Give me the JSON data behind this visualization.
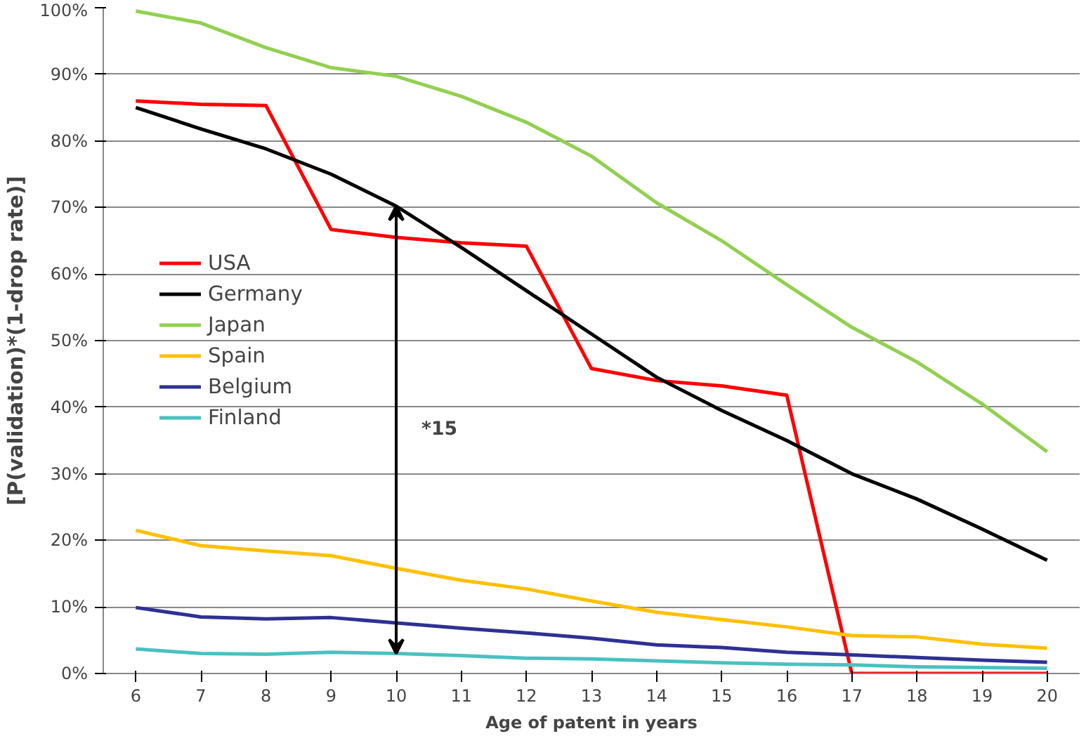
{
  "chart_data": {
    "type": "line",
    "xlabel": "Age of patent in years",
    "ylabel": "[P(validation)*(1-drop rate)]",
    "x": [
      6,
      7,
      8,
      9,
      10,
      11,
      12,
      13,
      14,
      15,
      16,
      17,
      18,
      19,
      20
    ],
    "series": [
      {
        "name": "USA",
        "color": "#ff0000",
        "values": [
          86,
          85.5,
          85.3,
          66.7,
          65.5,
          64.7,
          64.2,
          45.8,
          44,
          43.2,
          41.8,
          0,
          0,
          0,
          0
        ]
      },
      {
        "name": "Germany",
        "color": "#000000",
        "values": [
          85,
          81.8,
          78.8,
          75,
          70.2,
          64,
          57.5,
          51,
          44.5,
          39.5,
          35,
          30,
          26.2,
          21.7,
          17
        ]
      },
      {
        "name": "Japan",
        "color": "#92d050",
        "values": [
          99.5,
          97.7,
          94,
          91,
          89.7,
          86.7,
          82.8,
          77.7,
          70.7,
          65,
          58.4,
          52,
          46.8,
          40.5,
          33.3
        ]
      },
      {
        "name": "Spain",
        "color": "#ffc000",
        "values": [
          21.5,
          19.2,
          18.4,
          17.7,
          15.8,
          14,
          12.7,
          10.9,
          9.2,
          8.1,
          7,
          5.7,
          5.5,
          4.4,
          3.8
        ]
      },
      {
        "name": "Belgium",
        "color": "#2e3192",
        "values": [
          9.9,
          8.5,
          8.2,
          8.4,
          7.6,
          6.8,
          6.1,
          5.3,
          4.3,
          3.9,
          3.2,
          2.8,
          2.4,
          2.0,
          1.7
        ]
      },
      {
        "name": "Finland",
        "color": "#4bc0c0",
        "values": [
          3.7,
          3.0,
          2.9,
          3.2,
          3.0,
          2.7,
          2.3,
          2.2,
          1.9,
          1.6,
          1.4,
          1.3,
          1.0,
          0.9,
          0.8
        ]
      }
    ],
    "xlim": [
      5.5,
      20.5
    ],
    "xticks": [
      6,
      7,
      8,
      9,
      10,
      11,
      12,
      13,
      14,
      15,
      16,
      17,
      18,
      19,
      20
    ],
    "ylim": [
      0,
      100
    ],
    "yticks": [
      {
        "value": 0,
        "label": "0%"
      },
      {
        "value": 10,
        "label": "10%"
      },
      {
        "value": 20,
        "label": "20%"
      },
      {
        "value": 30,
        "label": "30%"
      },
      {
        "value": 40,
        "label": "40%"
      },
      {
        "value": 50,
        "label": "50%"
      },
      {
        "value": 60,
        "label": "60%"
      },
      {
        "value": 70,
        "label": "70%"
      },
      {
        "value": 80,
        "label": "80%"
      },
      {
        "value": 90,
        "label": "90%"
      },
      {
        "value": 100,
        "label": "100%"
      }
    ],
    "annotations": [
      "*15"
    ],
    "grid": "y",
    "legend": "left",
    "marker": "none",
    "line_style": "solid"
  }
}
